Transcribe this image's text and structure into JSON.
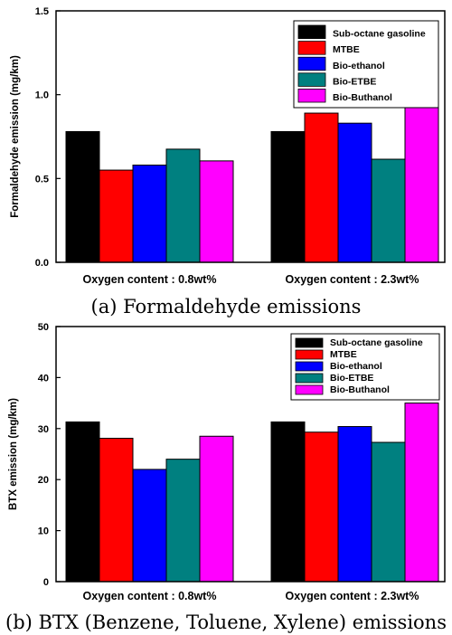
{
  "chart_data": [
    {
      "type": "bar",
      "caption": "(a)  Formaldehyde  emissions",
      "ylabel": "Formaldehyde emission (mg/km)",
      "ylim": [
        0,
        1.5
      ],
      "yticks": [
        "0.0",
        "0.5",
        "1.0",
        "1.5"
      ],
      "categories": [
        "Oxygen content : 0.8wt%",
        "Oxygen content : 2.3wt%"
      ],
      "legend_position": "top-right",
      "series": [
        {
          "name": "Sub-octane gasoline",
          "color": "#000000",
          "values": [
            0.78,
            0.78
          ]
        },
        {
          "name": "MTBE",
          "color": "#ff0000",
          "values": [
            0.55,
            0.89
          ]
        },
        {
          "name": "Bio-ethanol",
          "color": "#0000ff",
          "values": [
            0.58,
            0.83
          ]
        },
        {
          "name": "Bio-ETBE",
          "color": "#008080",
          "values": [
            0.675,
            0.615
          ]
        },
        {
          "name": "Bio-Buthanol",
          "color": "#ff00ff",
          "values": [
            0.605,
            0.985
          ]
        }
      ]
    },
    {
      "type": "bar",
      "caption": "(b)  BTX (Benzene,  Toluene,  Xylene)  emissions",
      "ylabel": "BTX emission (mg/km)",
      "ylim": [
        0,
        50
      ],
      "yticks": [
        "0",
        "10",
        "20",
        "30",
        "40",
        "50"
      ],
      "categories": [
        "Oxygen content : 0.8wt%",
        "Oxygen content : 2.3wt%"
      ],
      "legend_position": "top-right",
      "series": [
        {
          "name": "Sub-octane gasoline",
          "color": "#000000",
          "values": [
            31.3,
            31.3
          ]
        },
        {
          "name": "MTBE",
          "color": "#ff0000",
          "values": [
            28.1,
            29.3
          ]
        },
        {
          "name": "Bio-ethanol",
          "color": "#0000ff",
          "values": [
            22.0,
            30.4
          ]
        },
        {
          "name": "Bio-ETBE",
          "color": "#008080",
          "values": [
            24.0,
            27.3
          ]
        },
        {
          "name": "Bio-Buthanol",
          "color": "#ff00ff",
          "values": [
            28.5,
            35.0
          ]
        }
      ]
    }
  ]
}
